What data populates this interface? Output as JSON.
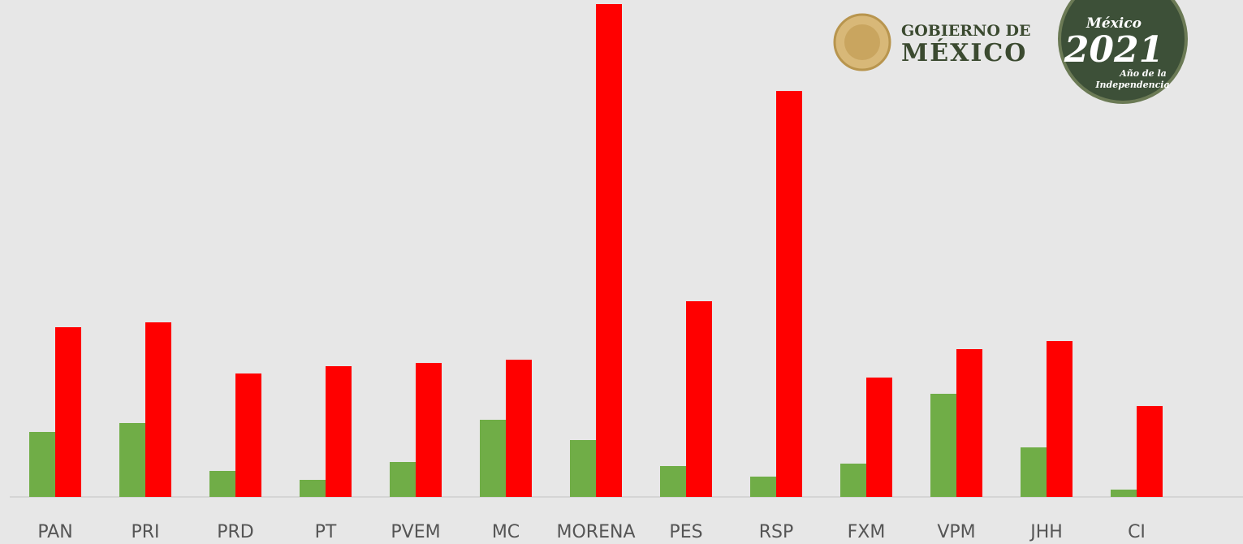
{
  "chart_data": {
    "type": "bar",
    "categories": [
      "PAN",
      "PRI",
      "PRD",
      "PT",
      "PVEM",
      "MC",
      "MORENA",
      "PES",
      "RSP",
      "FXM",
      "VPM",
      "JHH",
      "CI"
    ],
    "series": [
      {
        "color": "#70ad47",
        "values": [
          80,
          91,
          32,
          21,
          43,
          95,
          70,
          38,
          25,
          41,
          127,
          61,
          9
        ]
      },
      {
        "color": "#ff0000",
        "values": [
          209,
          215,
          152,
          161,
          165,
          169,
          607,
          241,
          500,
          147,
          182,
          192,
          112
        ]
      }
    ],
    "ylim": [
      0,
      607
    ]
  },
  "logos": {
    "gobierno": [
      "GOBIERNO DE",
      "MÉXICO"
    ],
    "badge": [
      "México",
      "2021",
      "Año de la",
      "Independencia"
    ]
  }
}
